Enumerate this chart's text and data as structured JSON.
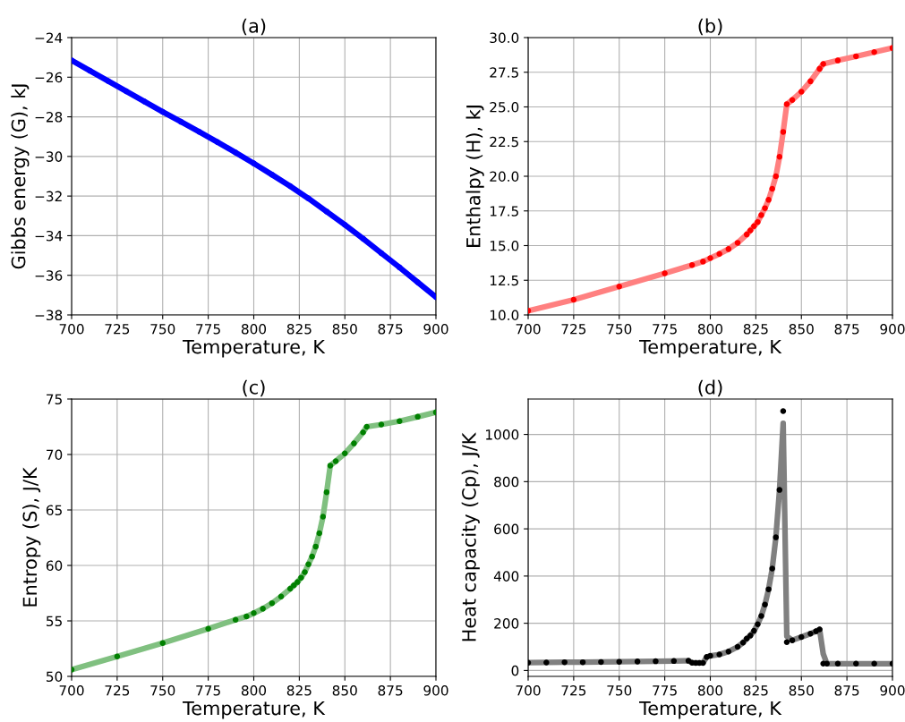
{
  "chart_data": [
    {
      "type": "line",
      "title": "(a)",
      "xlabel": "Temperature, K",
      "ylabel": "Gibbs energy (G), kJ",
      "xlim": [
        700,
        900
      ],
      "xticks": [
        700,
        725,
        750,
        775,
        800,
        825,
        850,
        875,
        900
      ],
      "ylim": [
        -38,
        -24
      ],
      "yticks": [
        {
          "value": -38,
          "label": "−38"
        },
        {
          "value": -36,
          "label": "−36"
        },
        {
          "value": -34,
          "label": "−34"
        },
        {
          "value": -32,
          "label": "−32"
        },
        {
          "value": -30,
          "label": "−30"
        },
        {
          "value": -28,
          "label": "−28"
        },
        {
          "value": -26,
          "label": "−26"
        },
        {
          "value": -24,
          "label": "−24"
        }
      ],
      "grid": true,
      "series": [
        {
          "color": "#0000ff",
          "x": [
            700,
            710,
            720,
            730,
            740,
            750,
            760,
            770,
            780,
            790,
            800,
            810,
            820,
            830,
            840,
            850,
            860,
            870,
            880,
            890,
            900
          ],
          "values": [
            -25.15,
            -25.67,
            -26.19,
            -26.71,
            -27.23,
            -27.75,
            -28.25,
            -28.75,
            -29.27,
            -29.8,
            -30.35,
            -30.92,
            -31.5,
            -32.12,
            -32.78,
            -33.45,
            -34.15,
            -34.88,
            -35.6,
            -36.35,
            -37.1
          ]
        },
        {
          "type": "scatter",
          "marker": "circle",
          "color": "#0000ff",
          "x": [
            700,
            710,
            720,
            730,
            740,
            750,
            760,
            770,
            780,
            790,
            800,
            810,
            820,
            830,
            840,
            850,
            860,
            870,
            880,
            890,
            900
          ],
          "values": [
            -25.15,
            -25.67,
            -26.19,
            -26.71,
            -27.23,
            -27.75,
            -28.25,
            -28.75,
            -29.27,
            -29.8,
            -30.35,
            -30.92,
            -31.5,
            -32.12,
            -32.78,
            -33.45,
            -34.15,
            -34.88,
            -35.6,
            -36.35,
            -37.1
          ]
        }
      ]
    },
    {
      "type": "line",
      "title": "(b)",
      "xlabel": "Temperature, K",
      "ylabel": "Enthalpy (H), kJ",
      "xlim": [
        700,
        900
      ],
      "xticks": [
        700,
        725,
        750,
        775,
        800,
        825,
        850,
        875,
        900
      ],
      "ylim": [
        10,
        30
      ],
      "yticks": [
        {
          "value": 10,
          "label": "10.0"
        },
        {
          "value": 12.5,
          "label": "12.5"
        },
        {
          "value": 15,
          "label": "15.0"
        },
        {
          "value": 17.5,
          "label": "17.5"
        },
        {
          "value": 20,
          "label": "20.0"
        },
        {
          "value": 22.5,
          "label": "22.5"
        },
        {
          "value": 25,
          "label": "25.0"
        },
        {
          "value": 27.5,
          "label": "27.5"
        },
        {
          "value": 30,
          "label": "30.0"
        }
      ],
      "grid": true,
      "series": [
        {
          "color": "#ff8080",
          "x": [
            700,
            725,
            750,
            775,
            790,
            796,
            800,
            805,
            810,
            815,
            820,
            822,
            824,
            826,
            828,
            830,
            832,
            834,
            836,
            838,
            840,
            842,
            845,
            850,
            855,
            860,
            862,
            870,
            880,
            890,
            900
          ],
          "values": [
            10.3,
            11.1,
            12.05,
            13.0,
            13.6,
            13.85,
            14.1,
            14.4,
            14.75,
            15.2,
            15.8,
            16.1,
            16.4,
            16.7,
            17.2,
            17.7,
            18.3,
            19.1,
            20.0,
            21.4,
            23.2,
            25.2,
            25.5,
            26.1,
            26.85,
            27.75,
            28.1,
            28.35,
            28.65,
            28.95,
            29.25
          ]
        },
        {
          "type": "scatter",
          "marker": "circle",
          "color": "#ff0000",
          "x": [
            700,
            725,
            750,
            775,
            790,
            796,
            800,
            805,
            810,
            815,
            820,
            822,
            824,
            826,
            828,
            830,
            832,
            834,
            836,
            838,
            840,
            842,
            845,
            850,
            855,
            860,
            862,
            870,
            880,
            890,
            900
          ],
          "values": [
            10.3,
            11.1,
            12.05,
            13.0,
            13.6,
            13.85,
            14.1,
            14.4,
            14.75,
            15.2,
            15.8,
            16.1,
            16.4,
            16.7,
            17.2,
            17.7,
            18.3,
            19.1,
            20.0,
            21.4,
            23.2,
            25.2,
            25.5,
            26.1,
            26.85,
            27.75,
            28.1,
            28.35,
            28.65,
            28.95,
            29.25
          ]
        }
      ]
    },
    {
      "type": "line",
      "title": "(c)",
      "xlabel": "Temperature, K",
      "ylabel": "Entropy (S), J/K",
      "xlim": [
        700,
        900
      ],
      "xticks": [
        700,
        725,
        750,
        775,
        800,
        825,
        850,
        875,
        900
      ],
      "ylim": [
        50,
        75
      ],
      "yticks": [
        50,
        55,
        60,
        65,
        70,
        75
      ],
      "grid": true,
      "series": [
        {
          "color": "#80c080",
          "x": [
            700,
            725,
            750,
            775,
            790,
            796,
            800,
            805,
            810,
            815,
            820,
            822,
            824,
            826,
            828,
            830,
            832,
            834,
            836,
            838,
            840,
            842,
            845,
            850,
            855,
            860,
            862,
            870,
            880,
            890,
            900
          ],
          "values": [
            50.6,
            51.8,
            53.0,
            54.3,
            55.1,
            55.4,
            55.7,
            56.1,
            56.6,
            57.2,
            57.9,
            58.2,
            58.5,
            58.9,
            59.4,
            60.1,
            60.8,
            61.7,
            62.9,
            64.4,
            66.6,
            69.0,
            69.4,
            70.1,
            71.0,
            72.0,
            72.5,
            72.7,
            73.0,
            73.4,
            73.8
          ]
        },
        {
          "type": "scatter",
          "marker": "circle",
          "color": "#008000",
          "x": [
            700,
            725,
            750,
            775,
            790,
            796,
            800,
            805,
            810,
            815,
            820,
            822,
            824,
            826,
            828,
            830,
            832,
            834,
            836,
            838,
            840,
            842,
            845,
            850,
            855,
            860,
            862,
            870,
            880,
            890,
            900
          ],
          "values": [
            50.6,
            51.8,
            53.0,
            54.3,
            55.1,
            55.4,
            55.7,
            56.1,
            56.6,
            57.2,
            57.9,
            58.2,
            58.5,
            58.9,
            59.4,
            60.1,
            60.8,
            61.7,
            62.9,
            64.4,
            66.6,
            69.0,
            69.4,
            70.1,
            71.0,
            72.0,
            72.5,
            72.7,
            73.0,
            73.4,
            73.8
          ]
        }
      ]
    },
    {
      "type": "line",
      "title": "(d)",
      "xlabel": "Temperature, K",
      "ylabel": "Heat capacity (Cp), J/K",
      "xlim": [
        700,
        900
      ],
      "xticks": [
        700,
        725,
        750,
        775,
        800,
        825,
        850,
        875,
        900
      ],
      "ylim": [
        -25,
        1150
      ],
      "yticks": [
        0,
        200,
        400,
        600,
        800,
        1000
      ],
      "grid": true,
      "series": [
        {
          "color": "#808080",
          "x": [
            700,
            710,
            720,
            730,
            740,
            750,
            760,
            770,
            780,
            788,
            790,
            792,
            794,
            796,
            798,
            800,
            805,
            810,
            815,
            818,
            820,
            822,
            824,
            826,
            828,
            830,
            832,
            834,
            836,
            838,
            840,
            842,
            845,
            850,
            855,
            858,
            860,
            862,
            864,
            870,
            880,
            890,
            900
          ],
          "values": [
            33,
            34,
            35,
            35,
            36,
            37,
            38,
            39,
            40,
            41,
            33,
            32,
            32,
            32,
            57,
            62,
            68,
            80,
            100,
            118,
            135,
            148,
            168,
            196,
            231,
            279,
            344,
            432,
            564,
            765,
            1047,
            145,
            128,
            142,
            156,
            166,
            174,
            70,
            29,
            29,
            29,
            29,
            29
          ]
        },
        {
          "type": "scatter",
          "marker": "circle",
          "color": "#000000",
          "x": [
            700,
            710,
            720,
            730,
            740,
            750,
            760,
            770,
            780,
            788,
            790,
            792,
            794,
            796,
            798,
            800,
            805,
            810,
            815,
            818,
            820,
            822,
            824,
            826,
            828,
            830,
            832,
            834,
            836,
            838,
            840,
            842,
            845,
            850,
            855,
            858,
            860,
            862,
            864,
            870,
            880,
            890,
            900
          ],
          "values": [
            33,
            34,
            35,
            35,
            36,
            37,
            38,
            39,
            40,
            41,
            33,
            32,
            32,
            32,
            57,
            62,
            68,
            80,
            100,
            118,
            135,
            148,
            168,
            196,
            231,
            279,
            344,
            432,
            564,
            765,
            1099,
            120,
            128,
            142,
            156,
            166,
            174,
            29,
            29,
            29,
            29,
            29,
            29
          ]
        }
      ]
    }
  ]
}
